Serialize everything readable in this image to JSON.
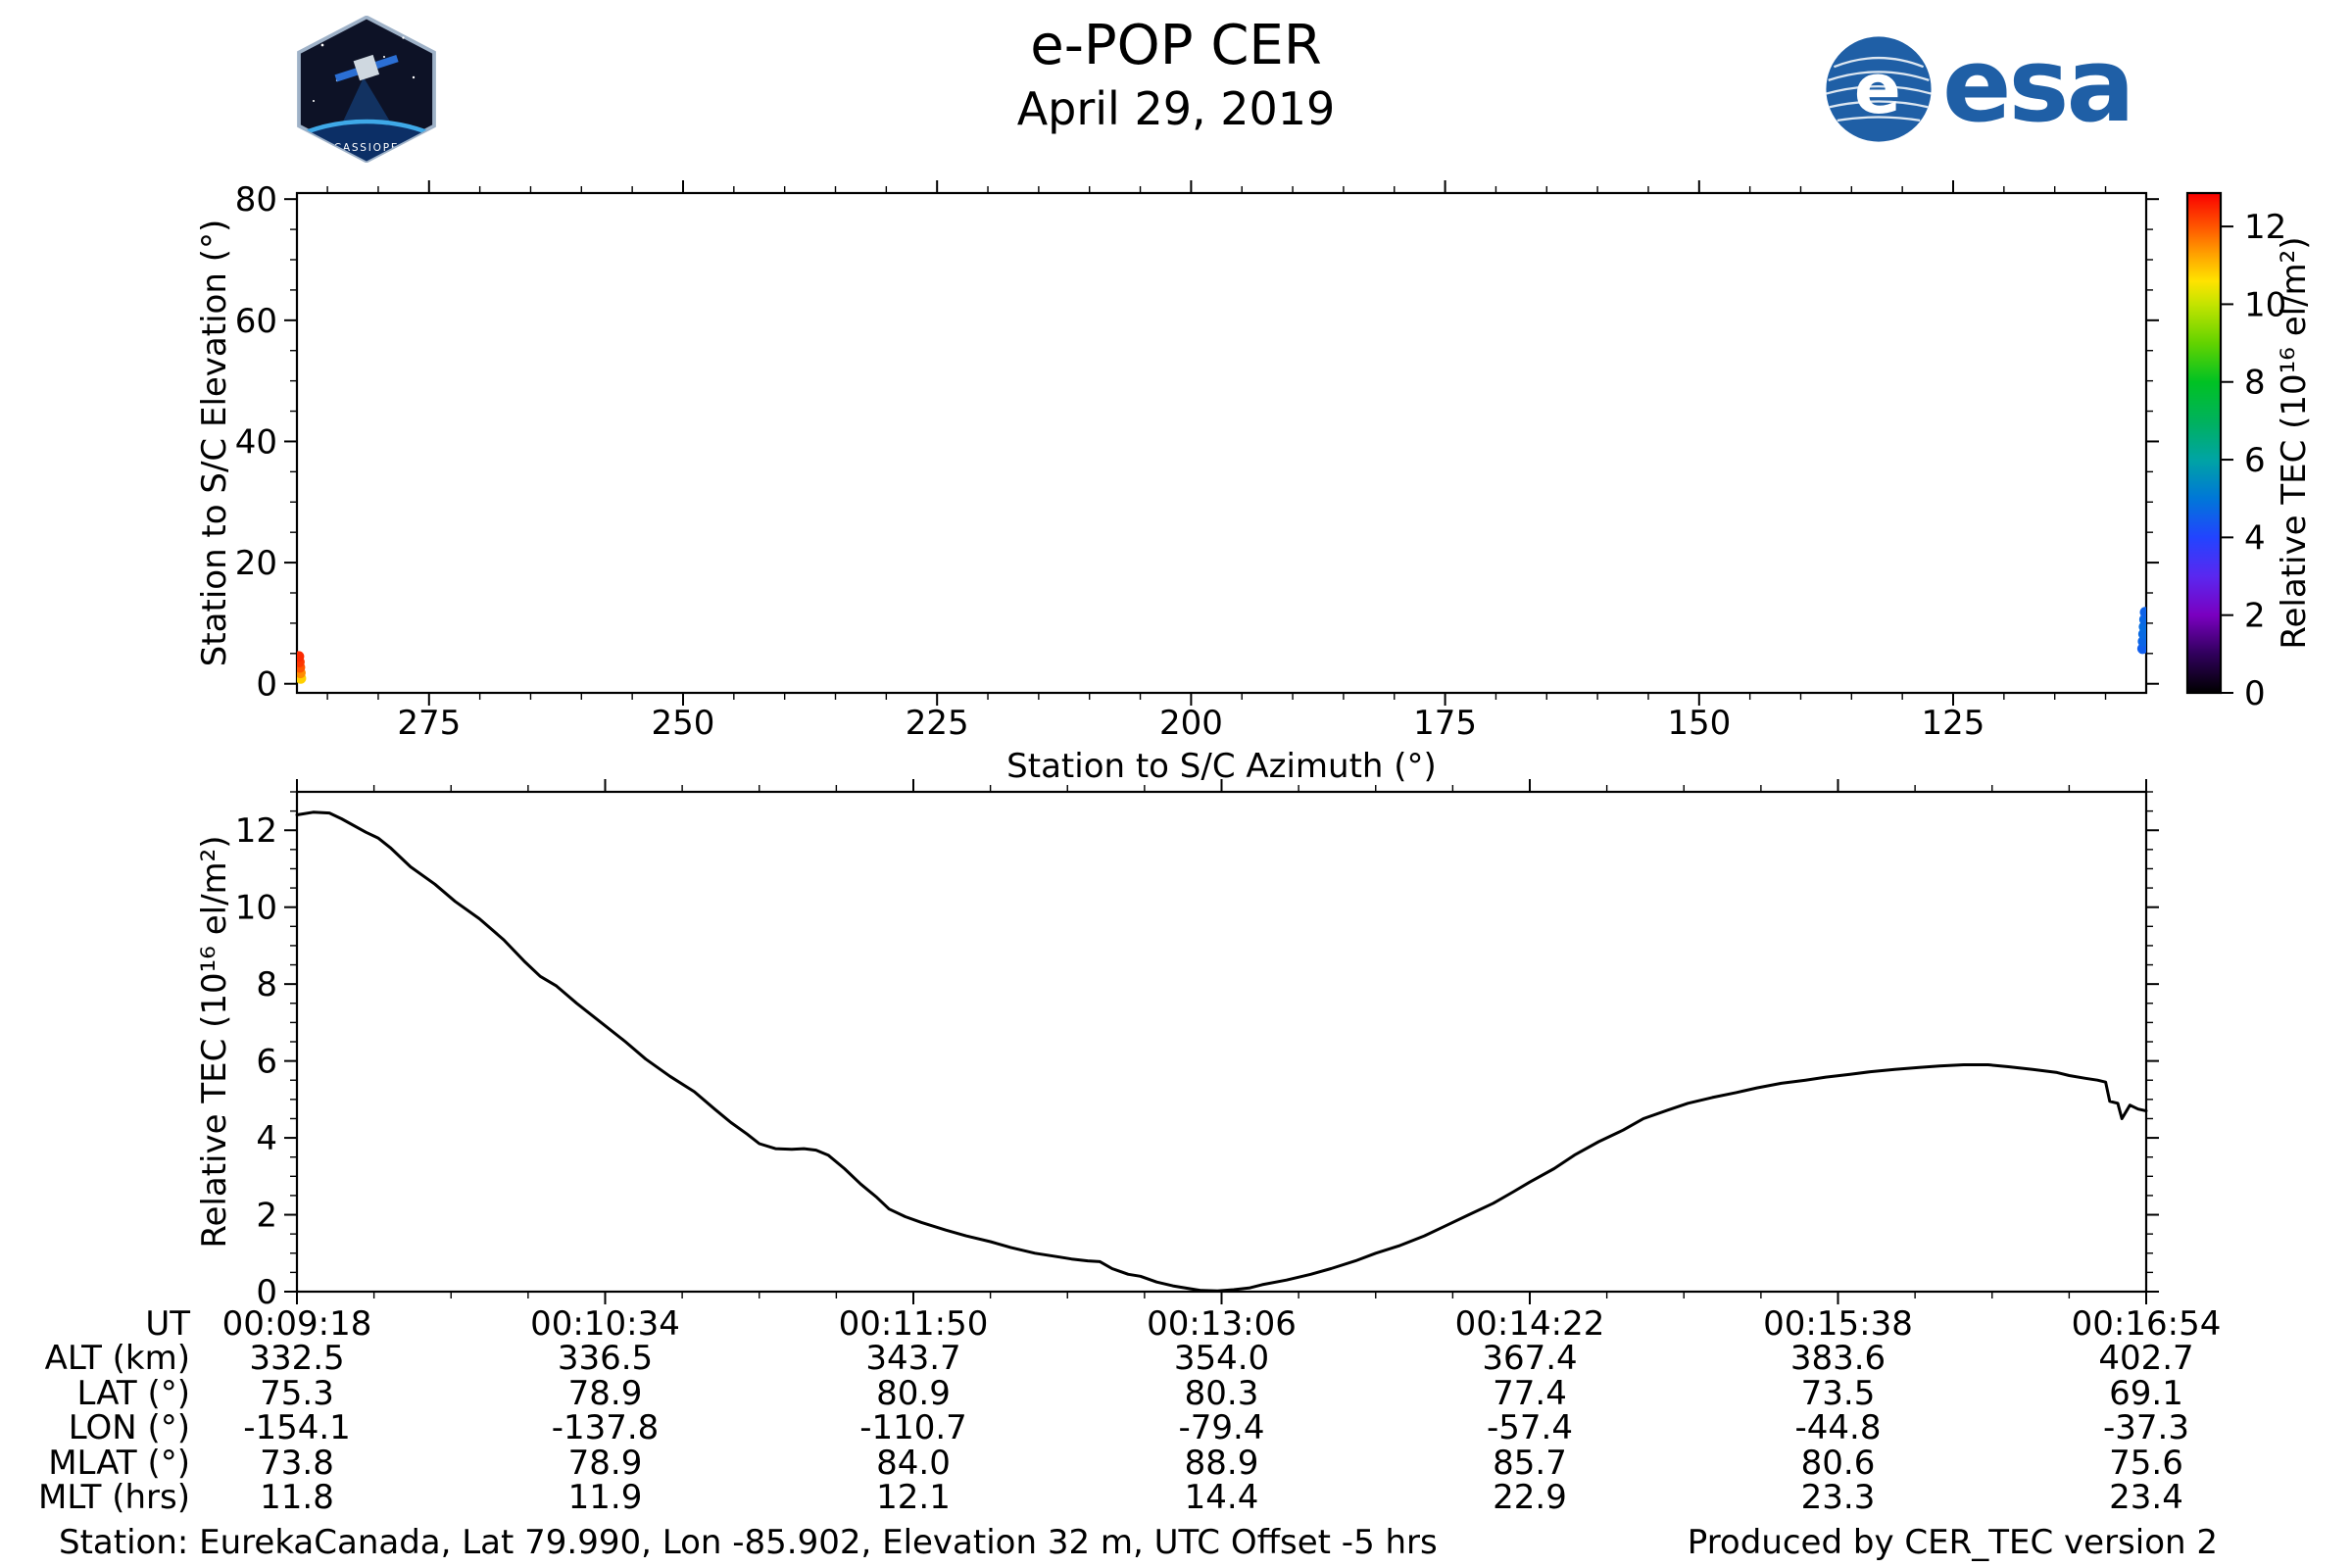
{
  "header": {
    "title": "e-POP CER",
    "date": "April 29, 2019",
    "esa_text": "esa",
    "esa_emblem_letter": "e",
    "esa_blue": "#1f5fa6",
    "patch_text": "CASSIOPE"
  },
  "colorbar": {
    "label": "Relative TEC (10¹⁶ el/m²)",
    "ticks": [
      0,
      2,
      4,
      6,
      8,
      10,
      12
    ],
    "vmin": 0,
    "vmax": 12.86,
    "stops": [
      [
        0,
        "#000000"
      ],
      [
        1,
        "#30005c"
      ],
      [
        2,
        "#7a00c0"
      ],
      [
        3,
        "#5a28f0"
      ],
      [
        4,
        "#2244ff"
      ],
      [
        5,
        "#0077d8"
      ],
      [
        6,
        "#00a4a4"
      ],
      [
        7,
        "#00b25c"
      ],
      [
        8,
        "#00c223"
      ],
      [
        9,
        "#63d300"
      ],
      [
        10,
        "#c4e400"
      ],
      [
        10.6,
        "#ffe300"
      ],
      [
        11.3,
        "#ffa000"
      ],
      [
        12,
        "#ff5500"
      ],
      [
        12.86,
        "#fa0000"
      ]
    ]
  },
  "chart_data": [
    {
      "type": "scatter",
      "title": "",
      "xlabel": "Station to S/C Azimuth (°)",
      "ylabel": "Station to S/C Elevation (°)",
      "xlim": [
        288,
        106
      ],
      "ylim": [
        -1.5,
        81
      ],
      "xticks": [
        275,
        250,
        225,
        200,
        175,
        150,
        125
      ],
      "yticks": [
        0,
        20,
        40,
        60,
        80
      ],
      "x_minor_step": 5,
      "y_minor_step": 5,
      "point_format": [
        "azimuth_deg",
        "elevation_deg",
        "relative_tec_1e16_el_m2"
      ],
      "pass_start_points": [
        [
          287.62,
          0.9,
          10.8
        ],
        [
          287.67,
          1.8,
          11.5
        ],
        [
          287.72,
          2.7,
          12.0
        ],
        [
          287.77,
          3.6,
          12.3
        ],
        [
          287.82,
          4.5,
          12.45
        ]
      ],
      "pass_end_points": [
        [
          106.35,
          5.8,
          4.5
        ],
        [
          106.3,
          7.0,
          4.65
        ],
        [
          106.25,
          8.2,
          4.75
        ],
        [
          106.2,
          9.4,
          4.8
        ],
        [
          106.15,
          10.6,
          4.7
        ],
        [
          106.1,
          11.8,
          4.6
        ]
      ]
    },
    {
      "type": "line",
      "title": "",
      "ylabel": "Relative TEC (10¹⁶ el/m²)",
      "xlim_ut_seconds": [
        558,
        1014
      ],
      "ylim": [
        0,
        13
      ],
      "yticks": [
        0,
        2,
        4,
        6,
        8,
        10,
        12
      ],
      "xtick_ut_seconds": [
        558,
        634,
        710,
        786,
        862,
        938,
        1014
      ],
      "x_minor_step_seconds": 19,
      "y_minor_step": 0.5,
      "series": [
        {
          "name": "Relative TEC",
          "points": [
            [
              558,
              12.4
            ],
            [
              562,
              12.47
            ],
            [
              566,
              12.45
            ],
            [
              569,
              12.3
            ],
            [
              575,
              11.95
            ],
            [
              578,
              11.8
            ],
            [
              581,
              11.55
            ],
            [
              586,
              11.05
            ],
            [
              592,
              10.6
            ],
            [
              597,
              10.15
            ],
            [
              603,
              9.7
            ],
            [
              609,
              9.15
            ],
            [
              614,
              8.6
            ],
            [
              618,
              8.2
            ],
            [
              622,
              7.95
            ],
            [
              627,
              7.5
            ],
            [
              633,
              7.0
            ],
            [
              639,
              6.5
            ],
            [
              644,
              6.05
            ],
            [
              650,
              5.6
            ],
            [
              656,
              5.2
            ],
            [
              661,
              4.75
            ],
            [
              665,
              4.4
            ],
            [
              669,
              4.1
            ],
            [
              672,
              3.85
            ],
            [
              676,
              3.72
            ],
            [
              680,
              3.7
            ],
            [
              683,
              3.72
            ],
            [
              686,
              3.68
            ],
            [
              689,
              3.55
            ],
            [
              693,
              3.2
            ],
            [
              697,
              2.8
            ],
            [
              701,
              2.45
            ],
            [
              704,
              2.15
            ],
            [
              708,
              1.95
            ],
            [
              712,
              1.8
            ],
            [
              718,
              1.6
            ],
            [
              723,
              1.45
            ],
            [
              729,
              1.3
            ],
            [
              734,
              1.15
            ],
            [
              740,
              1.0
            ],
            [
              746,
              0.9
            ],
            [
              749,
              0.85
            ],
            [
              753,
              0.8
            ],
            [
              756,
              0.78
            ],
            [
              759,
              0.6
            ],
            [
              763,
              0.45
            ],
            [
              766,
              0.4
            ],
            [
              770,
              0.25
            ],
            [
              774,
              0.15
            ],
            [
              778,
              0.08
            ],
            [
              781,
              0.03
            ],
            [
              785,
              0.02
            ],
            [
              789,
              0.05
            ],
            [
              793,
              0.1
            ],
            [
              796,
              0.18
            ],
            [
              802,
              0.3
            ],
            [
              808,
              0.45
            ],
            [
              813,
              0.6
            ],
            [
              819,
              0.8
            ],
            [
              824,
              1.0
            ],
            [
              830,
              1.2
            ],
            [
              836,
              1.45
            ],
            [
              841,
              1.7
            ],
            [
              847,
              2.0
            ],
            [
              853,
              2.3
            ],
            [
              858,
              2.6
            ],
            [
              862,
              2.85
            ],
            [
              868,
              3.2
            ],
            [
              873,
              3.55
            ],
            [
              879,
              3.9
            ],
            [
              885,
              4.2
            ],
            [
              890,
              4.5
            ],
            [
              896,
              4.72
            ],
            [
              901,
              4.9
            ],
            [
              907,
              5.05
            ],
            [
              913,
              5.18
            ],
            [
              918,
              5.3
            ],
            [
              924,
              5.42
            ],
            [
              930,
              5.5
            ],
            [
              935,
              5.58
            ],
            [
              941,
              5.65
            ],
            [
              946,
              5.72
            ],
            [
              952,
              5.78
            ],
            [
              958,
              5.83
            ],
            [
              963,
              5.87
            ],
            [
              969,
              5.9
            ],
            [
              975,
              5.9
            ],
            [
              980,
              5.85
            ],
            [
              986,
              5.78
            ],
            [
              992,
              5.7
            ],
            [
              995,
              5.62
            ],
            [
              999,
              5.55
            ],
            [
              1002,
              5.5
            ],
            [
              1004,
              5.45
            ],
            [
              1005,
              4.95
            ],
            [
              1007,
              4.9
            ],
            [
              1008,
              4.5
            ],
            [
              1010,
              4.85
            ],
            [
              1012,
              4.75
            ],
            [
              1014,
              4.7
            ]
          ]
        }
      ],
      "x_axis_table": {
        "row_labels": [
          "UT",
          "ALT (km)",
          "LAT (°)",
          "LON (°)",
          "MLAT (°)",
          "MLT (hrs)"
        ],
        "columns": [
          [
            "00:09:18",
            "332.5",
            "75.3",
            "-154.1",
            "73.8",
            "11.8"
          ],
          [
            "00:10:34",
            "336.5",
            "78.9",
            "-137.8",
            "78.9",
            "11.9"
          ],
          [
            "00:11:50",
            "343.7",
            "80.9",
            "-110.7",
            "84.0",
            "12.1"
          ],
          [
            "00:13:06",
            "354.0",
            "80.3",
            "-79.4",
            "88.9",
            "14.4"
          ],
          [
            "00:14:22",
            "367.4",
            "77.4",
            "-57.4",
            "85.7",
            "22.9"
          ],
          [
            "00:15:38",
            "383.6",
            "73.5",
            "-44.8",
            "80.6",
            "23.3"
          ],
          [
            "00:16:54",
            "402.7",
            "69.1",
            "-37.3",
            "75.6",
            "23.4"
          ]
        ]
      }
    }
  ],
  "footer": {
    "station": "Station: EurekaCanada, Lat 79.990, Lon -85.902, Elevation 32 m, UTC Offset -5 hrs",
    "produced": "Produced by CER_TEC version 2"
  }
}
